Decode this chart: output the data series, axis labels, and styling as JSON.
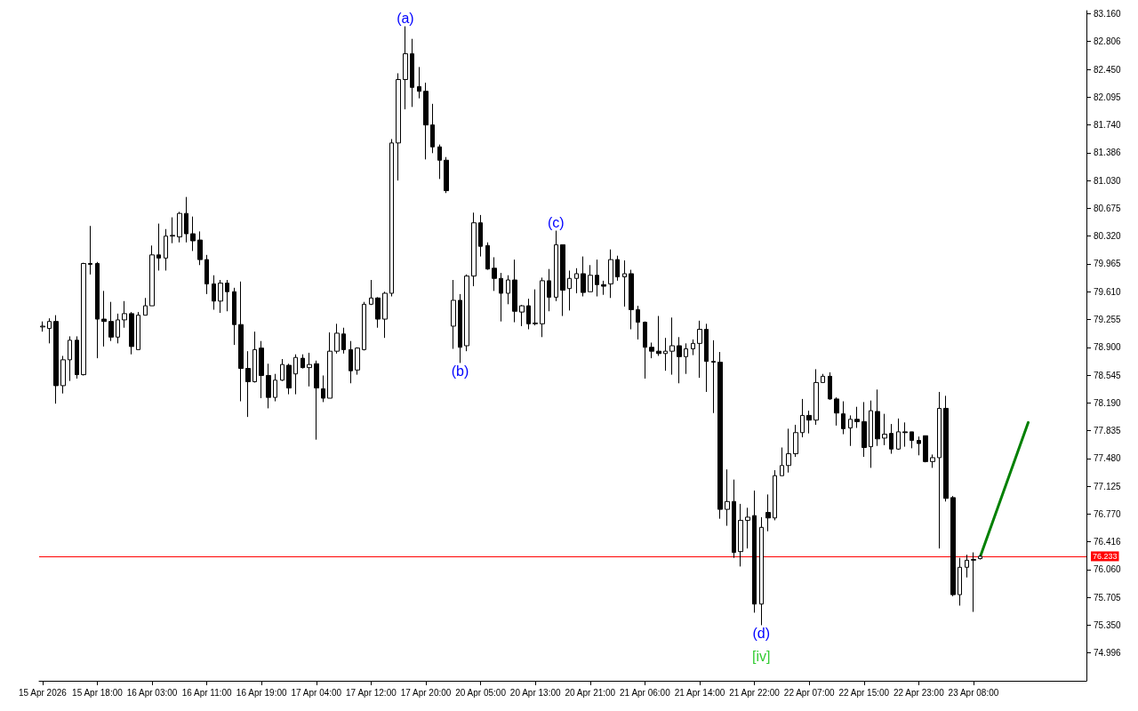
{
  "chart_data": {
    "type": "candlestick",
    "categories": [
      "15 Apr 2026",
      null,
      null,
      null,
      null,
      null,
      null,
      null,
      "15 Apr 18:00",
      null,
      null,
      null,
      null,
      null,
      null,
      null,
      "16 Apr 03:00",
      null,
      null,
      null,
      null,
      null,
      null,
      null,
      "16 Apr 11:00",
      null,
      null,
      null,
      null,
      null,
      null,
      null,
      "16 Apr 19:00",
      null,
      null,
      null,
      null,
      null,
      null,
      null,
      "17 Apr 04:00",
      null,
      null,
      null,
      null,
      null,
      null,
      null,
      "17 Apr 12:00",
      null,
      null,
      null,
      null,
      null,
      null,
      null,
      "17 Apr 20:00",
      null,
      null,
      null,
      null,
      null,
      null,
      null,
      "20 Apr 05:00",
      null,
      null,
      null,
      null,
      null,
      null,
      null,
      "20 Apr 13:00",
      null,
      null,
      null,
      null,
      null,
      null,
      null,
      "20 Apr 21:00",
      null,
      null,
      null,
      null,
      null,
      null,
      null,
      "21 Apr 06:00",
      null,
      null,
      null,
      null,
      null,
      null,
      null,
      "21 Apr 14:00",
      null,
      null,
      null,
      null,
      null,
      null,
      null,
      "21 Apr 22:00",
      null,
      null,
      null,
      null,
      null,
      null,
      null,
      "22 Apr 07:00",
      null,
      null,
      null,
      null,
      null,
      null,
      null,
      "22 Apr 15:00",
      null,
      null,
      null,
      null,
      null,
      null,
      null,
      "22 Apr 23:00",
      null,
      null,
      null,
      null,
      null,
      null,
      null,
      "23 Apr 08:00",
      null,
      null,
      null,
      null,
      null,
      null,
      null,
      null,
      null,
      null,
      null,
      null,
      null,
      null,
      null,
      null
    ],
    "ohlc": [
      [
        79.16,
        79.23,
        79.1,
        79.17
      ],
      [
        79.14,
        79.27,
        78.95,
        79.23
      ],
      [
        79.23,
        79.31,
        78.18,
        78.41
      ],
      [
        78.41,
        78.79,
        78.31,
        78.74
      ],
      [
        78.74,
        79.04,
        78.47,
        78.99
      ],
      [
        78.99,
        79.04,
        78.5,
        78.55
      ],
      [
        78.55,
        79.98,
        78.54,
        79.97
      ],
      [
        79.97,
        80.45,
        79.83,
        79.96
      ],
      [
        79.97,
        79.99,
        78.76,
        79.26
      ],
      [
        79.26,
        79.62,
        78.91,
        79.23
      ],
      [
        79.23,
        79.48,
        78.98,
        79.03
      ],
      [
        79.03,
        79.33,
        78.95,
        79.25
      ],
      [
        79.25,
        79.49,
        79.15,
        79.33
      ],
      [
        79.33,
        79.35,
        78.81,
        78.91
      ],
      [
        78.87,
        79.35,
        78.87,
        79.31
      ],
      [
        79.31,
        79.53,
        79.31,
        79.43
      ],
      [
        79.43,
        80.2,
        79.43,
        80.08
      ],
      [
        80.08,
        80.48,
        79.88,
        80.04
      ],
      [
        80.04,
        80.41,
        79.88,
        80.32
      ],
      [
        80.32,
        80.56,
        80.23,
        80.33
      ],
      [
        80.31,
        80.63,
        80.24,
        80.61
      ],
      [
        80.61,
        80.82,
        80.24,
        80.35
      ],
      [
        80.35,
        80.57,
        80.13,
        80.26
      ],
      [
        80.27,
        80.38,
        79.95,
        80.02
      ],
      [
        80.02,
        80.08,
        79.58,
        79.71
      ],
      [
        79.71,
        79.82,
        79.38,
        79.49
      ],
      [
        79.49,
        79.76,
        79.34,
        79.72
      ],
      [
        79.72,
        79.76,
        79.36,
        79.61
      ],
      [
        79.61,
        79.66,
        78.93,
        79.19
      ],
      [
        79.19,
        79.74,
        78.21,
        78.63
      ],
      [
        78.63,
        78.85,
        78.01,
        78.46
      ],
      [
        78.46,
        79.1,
        78.45,
        78.87
      ],
      [
        78.89,
        78.98,
        78.25,
        78.54
      ],
      [
        78.54,
        78.69,
        78.12,
        78.26
      ],
      [
        78.26,
        78.56,
        78.21,
        78.48
      ],
      [
        78.48,
        78.75,
        78.47,
        78.68
      ],
      [
        78.67,
        78.69,
        78.3,
        78.38
      ],
      [
        78.56,
        78.81,
        78.3,
        78.77
      ],
      [
        78.76,
        78.81,
        78.63,
        78.64
      ],
      [
        78.64,
        78.83,
        78.4,
        78.68
      ],
      [
        78.69,
        78.73,
        77.72,
        78.38
      ],
      [
        78.37,
        78.54,
        78.2,
        78.25
      ],
      [
        78.25,
        79.09,
        78.25,
        78.85
      ],
      [
        78.85,
        79.2,
        78.82,
        79.08
      ],
      [
        79.07,
        79.15,
        78.82,
        78.87
      ],
      [
        78.87,
        78.98,
        78.44,
        78.6
      ],
      [
        78.61,
        78.9,
        78.55,
        78.89
      ],
      [
        78.87,
        79.48,
        78.86,
        79.45
      ],
      [
        79.45,
        79.76,
        79.44,
        79.53
      ],
      [
        79.53,
        79.54,
        79.15,
        79.26
      ],
      [
        79.26,
        79.61,
        79.02,
        79.59
      ],
      [
        79.59,
        81.56,
        79.55,
        81.51
      ],
      [
        81.51,
        82.4,
        81.03,
        82.32
      ],
      [
        82.32,
        83.0,
        81.94,
        82.65
      ],
      [
        82.65,
        82.84,
        81.97,
        82.22
      ],
      [
        82.23,
        82.48,
        82.08,
        82.17
      ],
      [
        82.17,
        82.28,
        81.3,
        81.74
      ],
      [
        81.74,
        82.01,
        81.38,
        81.46
      ],
      [
        81.46,
        81.49,
        81.05,
        81.29
      ],
      [
        81.29,
        81.33,
        80.87,
        80.9
      ],
      [
        79.17,
        79.76,
        78.88,
        79.5
      ],
      [
        79.5,
        79.58,
        78.7,
        78.9
      ],
      [
        78.92,
        79.83,
        78.85,
        79.81
      ],
      [
        79.81,
        80.62,
        79.68,
        80.49
      ],
      [
        80.49,
        80.59,
        80.06,
        80.19
      ],
      [
        80.2,
        80.24,
        79.89,
        79.9
      ],
      [
        79.91,
        80.05,
        79.62,
        79.78
      ],
      [
        79.78,
        79.85,
        79.23,
        79.59
      ],
      [
        79.59,
        79.82,
        79.45,
        79.76
      ],
      [
        79.76,
        80.02,
        79.22,
        79.36
      ],
      [
        79.35,
        79.44,
        79.17,
        79.43
      ],
      [
        79.43,
        79.52,
        79.13,
        79.2
      ],
      [
        79.2,
        79.64,
        79.18,
        79.21
      ],
      [
        79.2,
        79.79,
        79.03,
        79.75
      ],
      [
        79.75,
        79.9,
        79.36,
        79.54
      ],
      [
        79.54,
        80.39,
        79.49,
        80.21
      ],
      [
        80.21,
        80.21,
        79.3,
        79.63
      ],
      [
        79.65,
        79.88,
        79.37,
        79.78
      ],
      [
        79.78,
        79.91,
        79.59,
        79.84
      ],
      [
        79.84,
        80.06,
        79.55,
        79.6
      ],
      [
        79.61,
        79.95,
        79.61,
        79.82
      ],
      [
        79.82,
        80.02,
        79.55,
        79.7
      ],
      [
        79.7,
        79.75,
        79.57,
        79.68
      ],
      [
        79.71,
        80.15,
        79.53,
        80.02
      ],
      [
        80.02,
        80.07,
        79.75,
        79.8
      ],
      [
        79.8,
        80.01,
        79.42,
        79.84
      ],
      [
        79.84,
        79.89,
        79.13,
        79.38
      ],
      [
        79.38,
        79.43,
        79.0,
        79.22
      ],
      [
        79.22,
        79.23,
        78.5,
        78.9
      ],
      [
        78.9,
        78.96,
        78.76,
        78.85
      ],
      [
        78.85,
        79.3,
        78.79,
        78.82
      ],
      [
        78.82,
        79.02,
        78.6,
        78.85
      ],
      [
        78.85,
        79.28,
        78.55,
        78.92
      ],
      [
        78.92,
        79.03,
        78.44,
        78.78
      ],
      [
        78.78,
        78.95,
        78.56,
        78.88
      ],
      [
        78.88,
        79.0,
        78.8,
        78.95
      ],
      [
        78.95,
        79.24,
        78.51,
        79.13
      ],
      [
        79.13,
        79.2,
        78.33,
        78.72
      ],
      [
        78.72,
        78.99,
        78.06,
        78.71
      ],
      [
        78.71,
        78.84,
        76.71,
        76.83
      ],
      [
        76.83,
        77.34,
        76.62,
        76.93
      ],
      [
        76.93,
        77.21,
        76.21,
        76.28
      ],
      [
        76.29,
        76.9,
        76.1,
        76.69
      ],
      [
        76.69,
        76.85,
        76.33,
        76.73
      ],
      [
        76.75,
        77.07,
        75.51,
        75.62
      ],
      [
        75.62,
        76.73,
        75.35,
        76.6
      ],
      [
        76.79,
        77.02,
        76.55,
        76.72
      ],
      [
        76.72,
        77.33,
        76.69,
        77.26
      ],
      [
        77.26,
        77.62,
        77.26,
        77.39
      ],
      [
        77.39,
        77.86,
        77.3,
        77.54
      ],
      [
        77.54,
        77.91,
        77.5,
        77.81
      ],
      [
        77.81,
        78.24,
        77.75,
        78.03
      ],
      [
        78.03,
        78.09,
        77.8,
        77.97
      ],
      [
        77.97,
        78.62,
        77.91,
        78.45
      ],
      [
        78.45,
        78.56,
        78.45,
        78.53
      ],
      [
        78.53,
        78.58,
        78.23,
        78.24
      ],
      [
        78.24,
        78.26,
        77.9,
        78.06
      ],
      [
        78.05,
        78.21,
        77.79,
        77.86
      ],
      [
        77.87,
        78.03,
        77.64,
        77.98
      ],
      [
        77.98,
        78.14,
        77.87,
        77.95
      ],
      [
        77.95,
        78.2,
        77.5,
        77.62
      ],
      [
        77.63,
        78.22,
        77.36,
        78.09
      ],
      [
        78.08,
        78.36,
        77.64,
        77.73
      ],
      [
        77.74,
        78.05,
        77.65,
        77.79
      ],
      [
        77.8,
        77.92,
        77.54,
        77.6
      ],
      [
        77.6,
        77.99,
        77.59,
        77.82
      ],
      [
        77.82,
        77.94,
        77.63,
        77.81
      ],
      [
        77.82,
        77.82,
        77.61,
        77.71
      ],
      [
        77.71,
        77.76,
        77.52,
        77.67
      ],
      [
        77.77,
        77.77,
        77.43,
        77.44
      ],
      [
        77.44,
        77.53,
        77.36,
        77.49
      ],
      [
        77.49,
        78.33,
        76.33,
        78.12
      ],
      [
        78.12,
        78.28,
        76.93,
        76.97
      ],
      [
        76.98,
        77.0,
        75.72,
        75.74
      ],
      [
        75.74,
        76.21,
        75.6,
        76.09
      ],
      [
        76.09,
        76.25,
        75.96,
        76.18
      ],
      [
        76.18,
        76.28,
        75.52,
        76.19
      ],
      [
        76.2,
        76.25,
        76.19,
        76.23
      ],
      null,
      null,
      null,
      null,
      null,
      null,
      null,
      null,
      null,
      null,
      null,
      null,
      null,
      null,
      null
    ],
    "series": [
      {
        "type": "line",
        "color": "#008000",
        "values": [
          null,
          null,
          null,
          null,
          null,
          null,
          null,
          null,
          null,
          null,
          null,
          null,
          null,
          null,
          null,
          null,
          null,
          null,
          null,
          null,
          null,
          null,
          null,
          null,
          null,
          null,
          null,
          null,
          null,
          null,
          null,
          null,
          null,
          null,
          null,
          null,
          null,
          null,
          null,
          null,
          null,
          null,
          null,
          null,
          null,
          null,
          null,
          null,
          null,
          null,
          null,
          null,
          null,
          null,
          null,
          null,
          null,
          null,
          null,
          null,
          null,
          null,
          null,
          null,
          null,
          null,
          null,
          null,
          null,
          null,
          null,
          null,
          null,
          null,
          null,
          null,
          null,
          null,
          null,
          null,
          null,
          null,
          null,
          null,
          null,
          null,
          null,
          null,
          null,
          null,
          null,
          null,
          null,
          null,
          null,
          null,
          null,
          null,
          null,
          null,
          null,
          null,
          null,
          null,
          null,
          null,
          null,
          null,
          null,
          null,
          null,
          null,
          null,
          null,
          null,
          null,
          null,
          null,
          null,
          null,
          null,
          null,
          null,
          null,
          null,
          null,
          null,
          null,
          null,
          null,
          null,
          null,
          null,
          null,
          null,
          null,
          null,
          76.23,
          null,
          null,
          null,
          null,
          null,
          null,
          77.94,
          null,
          null,
          null,
          null,
          null,
          null,
          null,
          null
        ]
      }
    ],
    "ylim": [
      74.64,
      83.2
    ],
    "yticks": [
      74.996,
      {
        "value": 75.35,
        "label": "75.350"
      },
      75.705,
      {
        "value": 76.06,
        "label": "76.060"
      },
      76.416,
      {
        "value": 76.77,
        "label": "76.770"
      },
      77.125,
      {
        "value": 77.48,
        "label": "77.480"
      },
      77.835,
      {
        "value": 78.19,
        "label": "78.190"
      },
      78.545,
      {
        "value": 78.9,
        "label": "78.900"
      },
      79.255,
      {
        "value": 79.61,
        "label": "79.610"
      },
      79.965,
      {
        "value": 80.32,
        "label": "80.320"
      },
      80.675,
      {
        "value": 81.03,
        "label": "81.030"
      },
      81.386,
      {
        "value": 81.74,
        "label": "81.740"
      },
      82.095,
      {
        "value": 82.45,
        "label": "82.450"
      },
      82.806,
      {
        "value": 83.16,
        "label": "83.160"
      }
    ],
    "ref_lines": [
      {
        "axis": "y",
        "value": 76.233,
        "label": "76.233",
        "color": "#ff0000"
      }
    ],
    "annotations": [
      {
        "text": "(a)",
        "y": 83.0
      },
      {
        "text": "(b)",
        "y": 78.7
      },
      {
        "text": "(c)",
        "y": 80.39
      },
      {
        "text": "(d)",
        "y": 75.35
      },
      {
        "text": "[iv]",
        "y": 75.35
      }
    ]
  }
}
